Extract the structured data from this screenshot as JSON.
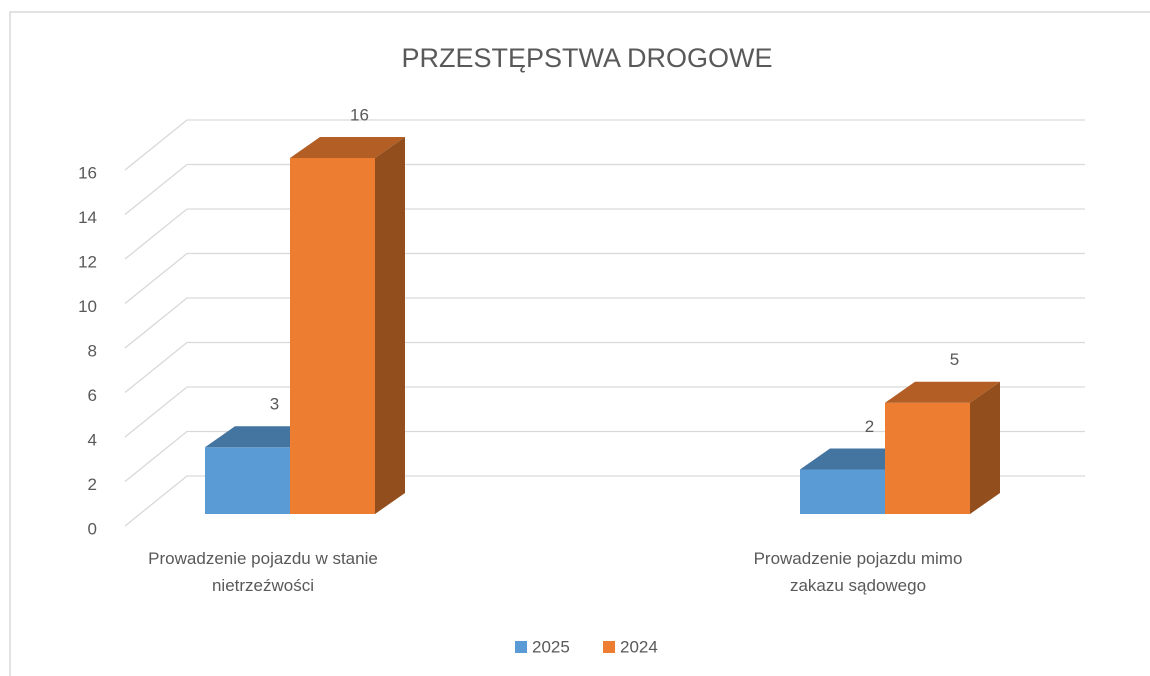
{
  "chart_data": {
    "type": "bar3d",
    "title": "PRZESTĘPSTWA DROGOWE",
    "categories": [
      "Prowadzenie pojazdu w stanie nietrzeźwości",
      "Prowadzenie pojazdu mimo zakazu sądowego"
    ],
    "series": [
      {
        "name": "2025",
        "color": "#5b9bd5",
        "values": [
          3,
          2
        ]
      },
      {
        "name": "2024",
        "color": "#ed7d31",
        "values": [
          16,
          5
        ]
      }
    ],
    "ylim": [
      0,
      16
    ],
    "yticks": [
      0,
      2,
      4,
      6,
      8,
      10,
      12,
      14,
      16
    ],
    "grid": true,
    "legend": "bottom"
  }
}
